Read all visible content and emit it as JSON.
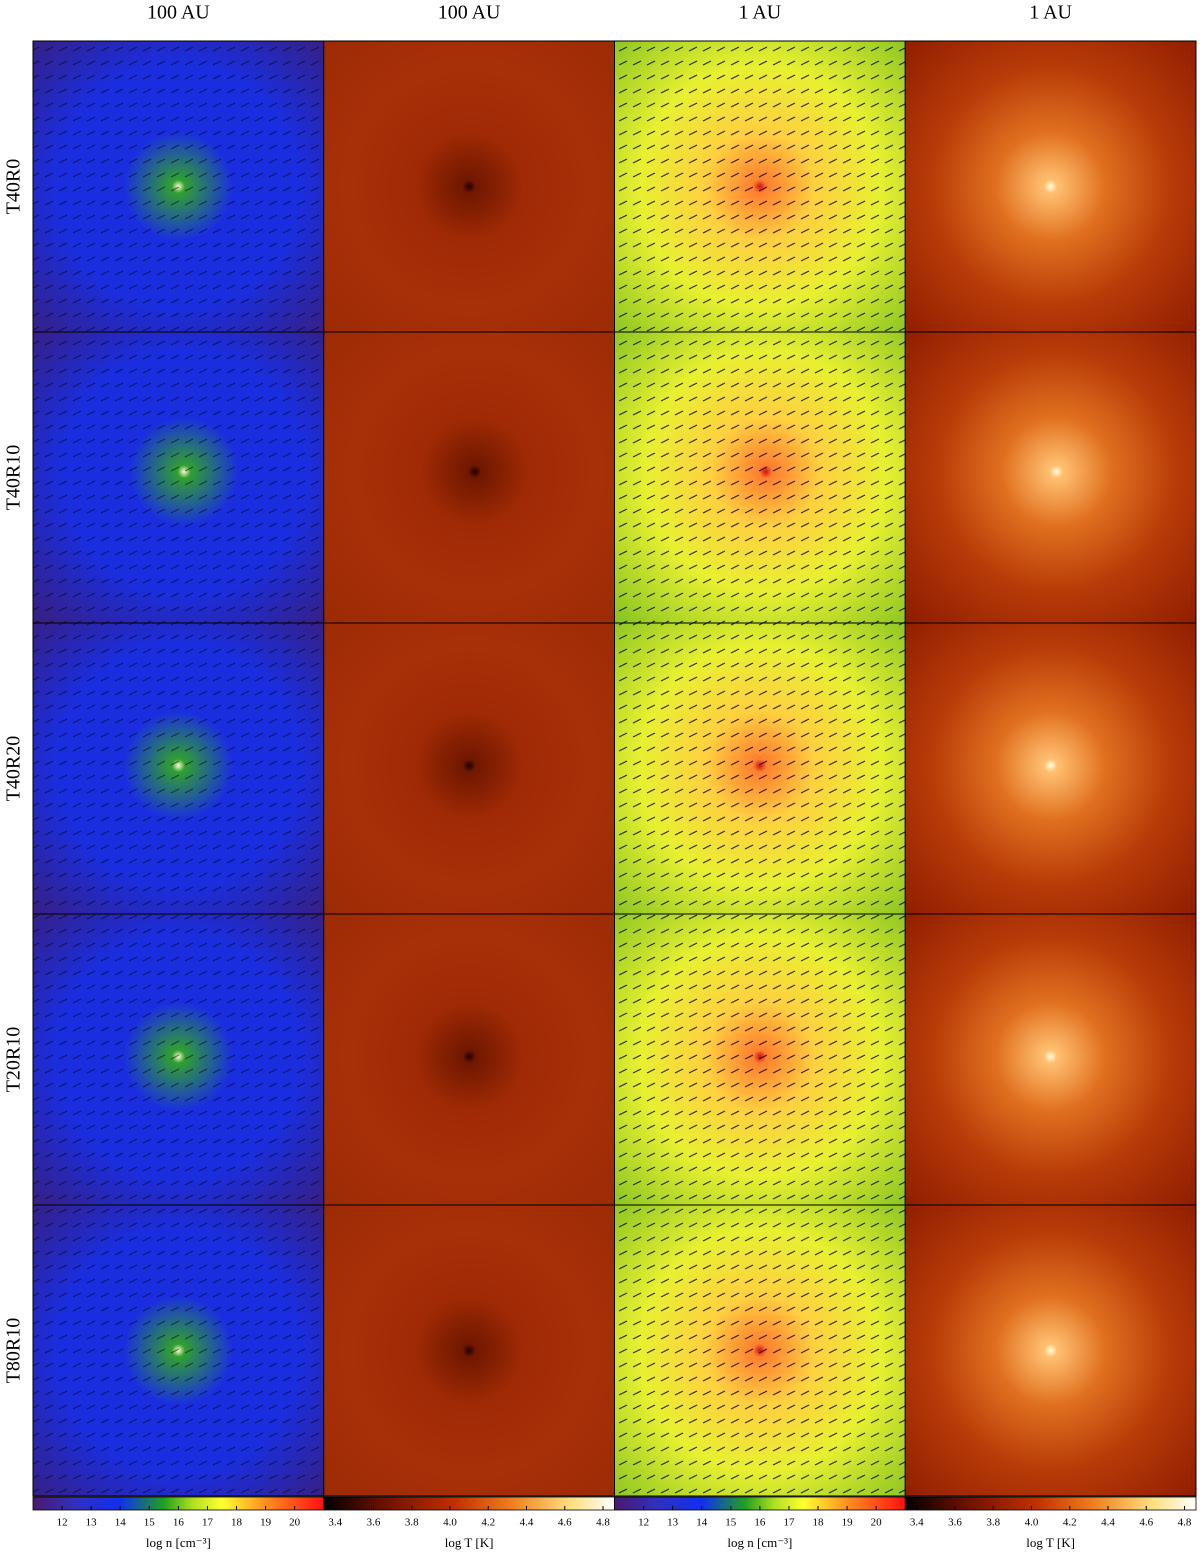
{
  "columns": [
    "100 AU",
    "100 AU",
    "1 AU",
    "1 AU"
  ],
  "rows": [
    "T40R0",
    "T40R10",
    "T40R20",
    "T20R10",
    "T80R10"
  ],
  "colorbars": [
    {
      "label": "log n [cm⁻³]",
      "lim": [
        11,
        21
      ],
      "ticks": [
        12,
        13,
        14,
        15,
        16,
        17,
        18,
        19,
        20
      ]
    },
    {
      "label": "log T [K]",
      "lim": [
        3.34,
        4.86
      ],
      "ticks": [
        3.4,
        3.6,
        3.8,
        {
          "value": 4,
          "label": "4.0"
        },
        4.2,
        4.4,
        4.6,
        4.8
      ]
    },
    {
      "label": "log n [cm⁻³]",
      "lim": [
        11,
        21
      ],
      "ticks": [
        12,
        13,
        14,
        15,
        16,
        17,
        18,
        19,
        20
      ]
    },
    {
      "label": "log T [K]",
      "lim": [
        3.34,
        4.86
      ],
      "ticks": [
        3.4,
        3.6,
        3.8,
        {
          "value": 4,
          "label": "4.0"
        },
        4.2,
        4.4,
        4.6,
        4.8
      ]
    }
  ]
}
